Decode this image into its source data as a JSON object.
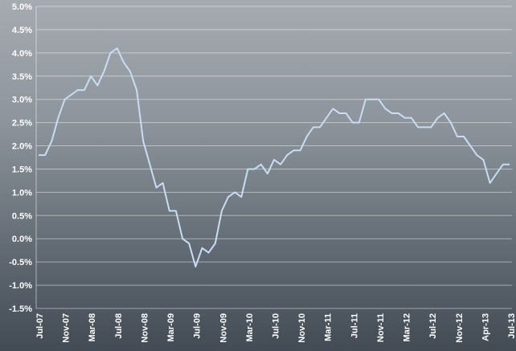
{
  "chart_data": {
    "type": "line",
    "title": "",
    "xlabel": "",
    "ylabel": "",
    "ylim": [
      -1.5,
      5.0
    ],
    "grid": true,
    "x_tick_labels": [
      "Jul-07",
      "Nov-07",
      "Mar-08",
      "Jul-08",
      "Nov-08",
      "Mar-09",
      "Jul-09",
      "Nov-09",
      "Mar-10",
      "Jul-10",
      "Nov-10",
      "Mar-11",
      "Jul-11",
      "Nov-11",
      "Mar-12",
      "Jul-12",
      "Nov-12",
      "Apr-13",
      "Jul-13"
    ],
    "y_tick_labels": [
      "5.0%",
      "4.5%",
      "4.0%",
      "3.5%",
      "3.0%",
      "2.5%",
      "2.0%",
      "1.5%",
      "1.0%",
      "0.5%",
      "0.0%",
      "-0.5%",
      "-1.0%",
      "-1.5%"
    ],
    "y_tick_values": [
      5.0,
      4.5,
      4.0,
      3.5,
      3.0,
      2.5,
      2.0,
      1.5,
      1.0,
      0.5,
      0.0,
      -0.5,
      -1.0,
      -1.5
    ],
    "series": [
      {
        "color": "#c8dcf4",
        "values": [
          1.8,
          1.8,
          2.1,
          2.6,
          3.0,
          3.1,
          3.2,
          3.2,
          3.5,
          3.3,
          3.6,
          4.0,
          4.1,
          3.8,
          3.6,
          3.2,
          2.1,
          1.6,
          1.1,
          1.2,
          0.6,
          0.6,
          0.0,
          -0.1,
          -0.6,
          -0.2,
          -0.3,
          -0.1,
          0.6,
          0.9,
          1.0,
          0.9,
          1.5,
          1.5,
          1.6,
          1.4,
          1.7,
          1.6,
          1.8,
          1.9,
          1.9,
          2.2,
          2.4,
          2.4,
          2.6,
          2.8,
          2.7,
          2.7,
          2.5,
          2.5,
          3.0,
          3.0,
          3.0,
          2.8,
          2.7,
          2.7,
          2.6,
          2.6,
          2.4,
          2.4,
          2.4,
          2.6,
          2.7,
          2.5,
          2.2,
          2.2,
          2.0,
          1.8,
          1.7,
          1.2,
          1.4,
          1.6,
          1.6
        ]
      }
    ]
  }
}
